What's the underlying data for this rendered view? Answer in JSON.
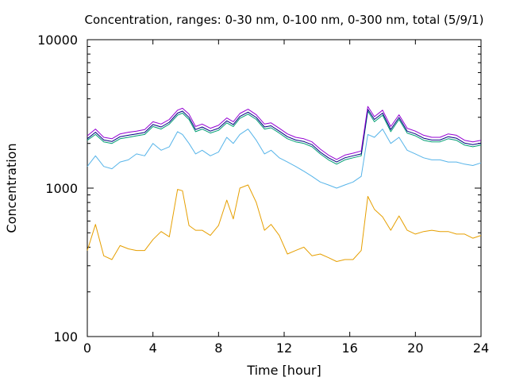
{
  "chart_data": {
    "type": "line",
    "title": "Concentration, ranges: 0-30 nm, 0-100 nm, 0-300 nm, total (5/9/1)",
    "xlabel": "Time [hour]",
    "ylabel": "Concentration",
    "xlim": [
      0,
      24
    ],
    "ylim": [
      100,
      10000
    ],
    "yscale": "log",
    "xticks": [
      0,
      4,
      8,
      12,
      16,
      20,
      24
    ],
    "yticks": [
      100,
      1000,
      10000
    ],
    "ytick_labels": [
      "100",
      "1000",
      "10000"
    ],
    "grid": false,
    "legend": "none",
    "x": [
      0,
      0.5,
      1,
      1.5,
      2,
      2.5,
      3,
      3.5,
      4,
      4.5,
      5,
      5.5,
      5.8,
      6.2,
      6.6,
      7,
      7.5,
      8,
      8.5,
      8.9,
      9.3,
      9.8,
      10.3,
      10.8,
      11.2,
      11.7,
      12.2,
      12.7,
      13.2,
      13.7,
      14.2,
      14.7,
      15.2,
      15.7,
      16.2,
      16.7,
      17.1,
      17.5,
      18,
      18.5,
      19,
      19.5,
      20,
      20.5,
      21,
      21.5,
      22,
      22.5,
      23,
      23.5,
      24
    ],
    "series": [
      {
        "color": "#e69f00",
        "values": [
          380,
          570,
          350,
          330,
          410,
          390,
          380,
          380,
          450,
          510,
          470,
          980,
          960,
          560,
          520,
          520,
          480,
          560,
          830,
          620,
          1000,
          1050,
          800,
          520,
          570,
          480,
          360,
          380,
          400,
          350,
          360,
          340,
          320,
          330,
          330,
          380,
          880,
          720,
          640,
          520,
          650,
          520,
          490,
          510,
          520,
          510,
          510,
          490,
          490,
          460,
          480
        ]
      },
      {
        "color": "#56b4e9",
        "values": [
          1400,
          1650,
          1400,
          1350,
          1500,
          1550,
          1700,
          1650,
          2000,
          1800,
          1900,
          2400,
          2300,
          2000,
          1700,
          1800,
          1650,
          1750,
          2200,
          2000,
          2300,
          2500,
          2100,
          1700,
          1800,
          1600,
          1500,
          1400,
          1300,
          1200,
          1100,
          1050,
          1000,
          1050,
          1100,
          1200,
          2300,
          2200,
          2500,
          2000,
          2200,
          1800,
          1700,
          1600,
          1550,
          1550,
          1500,
          1500,
          1450,
          1420,
          1480
        ]
      },
      {
        "color": "#009e73",
        "values": [
          2100,
          2300,
          2050,
          2000,
          2150,
          2200,
          2250,
          2300,
          2600,
          2500,
          2700,
          3100,
          3200,
          2900,
          2400,
          2500,
          2350,
          2450,
          2750,
          2600,
          2950,
          3150,
          2900,
          2500,
          2550,
          2350,
          2150,
          2050,
          2000,
          1900,
          1700,
          1550,
          1450,
          1550,
          1600,
          1650,
          3300,
          2800,
          3100,
          2400,
          2900,
          2350,
          2250,
          2100,
          2050,
          2050,
          2150,
          2100,
          1950,
          1900,
          1950
        ]
      },
      {
        "color": "#000080",
        "values": [
          2150,
          2380,
          2110,
          2060,
          2220,
          2270,
          2320,
          2370,
          2680,
          2580,
          2780,
          3200,
          3300,
          3000,
          2480,
          2580,
          2420,
          2530,
          2840,
          2680,
          3040,
          3250,
          2990,
          2580,
          2630,
          2420,
          2220,
          2110,
          2060,
          1960,
          1750,
          1600,
          1500,
          1600,
          1650,
          1700,
          3400,
          2900,
          3200,
          2480,
          2990,
          2420,
          2320,
          2170,
          2110,
          2110,
          2220,
          2170,
          2010,
          1960,
          2010
        ]
      },
      {
        "color": "#9400d3",
        "values": [
          2250,
          2500,
          2200,
          2150,
          2320,
          2380,
          2420,
          2480,
          2800,
          2700,
          2900,
          3350,
          3450,
          3150,
          2600,
          2700,
          2530,
          2650,
          2970,
          2800,
          3180,
          3400,
          3120,
          2700,
          2750,
          2530,
          2320,
          2200,
          2150,
          2050,
          1830,
          1670,
          1560,
          1670,
          1720,
          1780,
          3550,
          3030,
          3350,
          2600,
          3120,
          2530,
          2420,
          2270,
          2200,
          2200,
          2320,
          2270,
          2100,
          2050,
          2100
        ]
      }
    ]
  }
}
